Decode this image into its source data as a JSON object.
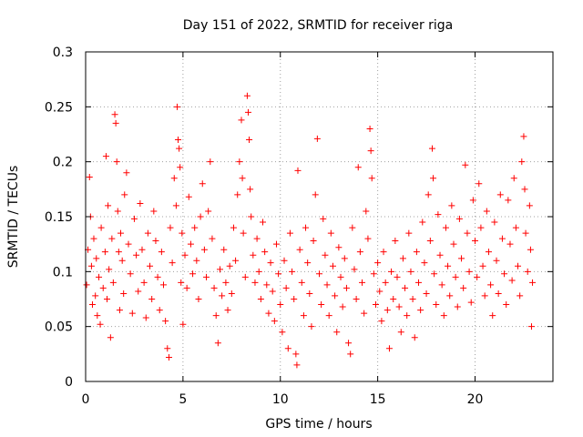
{
  "chart_data": {
    "type": "scatter",
    "title": "Day 151 of 2022, SRMTID for receiver riga",
    "xlabel": "GPS time / hours",
    "ylabel": "SRMTID / TECUs",
    "xlim": [
      0,
      24
    ],
    "ylim": [
      0,
      0.3
    ],
    "x_ticks": [
      "0",
      "5",
      "10",
      "15",
      "20"
    ],
    "y_ticks": [
      "0",
      "0.05",
      "0.1",
      "0.15",
      "0.2",
      "0.25",
      "0.3"
    ],
    "grid": true,
    "marker": "plus",
    "series": [
      {
        "color": "#ff0000",
        "points": [
          [
            0.05,
            0.088
          ],
          [
            0.12,
            0.12
          ],
          [
            0.2,
            0.186
          ],
          [
            0.25,
            0.15
          ],
          [
            0.3,
            0.105
          ],
          [
            0.35,
            0.07
          ],
          [
            0.42,
            0.13
          ],
          [
            0.5,
            0.078
          ],
          [
            0.55,
            0.112
          ],
          [
            0.6,
            0.06
          ],
          [
            0.68,
            0.095
          ],
          [
            0.75,
            0.052
          ],
          [
            0.8,
            0.14
          ],
          [
            0.9,
            0.085
          ],
          [
            1.0,
            0.118
          ],
          [
            1.05,
            0.205
          ],
          [
            1.1,
            0.075
          ],
          [
            1.15,
            0.16
          ],
          [
            1.2,
            0.102
          ],
          [
            1.28,
            0.04
          ],
          [
            1.35,
            0.13
          ],
          [
            1.42,
            0.09
          ],
          [
            1.5,
            0.243
          ],
          [
            1.55,
            0.235
          ],
          [
            1.6,
            0.2
          ],
          [
            1.65,
            0.155
          ],
          [
            1.7,
            0.118
          ],
          [
            1.75,
            0.065
          ],
          [
            1.8,
            0.135
          ],
          [
            1.88,
            0.11
          ],
          [
            1.95,
            0.08
          ],
          [
            2.0,
            0.17
          ],
          [
            2.1,
            0.19
          ],
          [
            2.2,
            0.125
          ],
          [
            2.3,
            0.098
          ],
          [
            2.4,
            0.062
          ],
          [
            2.5,
            0.148
          ],
          [
            2.6,
            0.115
          ],
          [
            2.7,
            0.082
          ],
          [
            2.8,
            0.162
          ],
          [
            2.9,
            0.12
          ],
          [
            3.0,
            0.09
          ],
          [
            3.1,
            0.058
          ],
          [
            3.2,
            0.135
          ],
          [
            3.3,
            0.105
          ],
          [
            3.4,
            0.075
          ],
          [
            3.5,
            0.155
          ],
          [
            3.6,
            0.128
          ],
          [
            3.7,
            0.095
          ],
          [
            3.8,
            0.065
          ],
          [
            3.9,
            0.118
          ],
          [
            4.0,
            0.088
          ],
          [
            4.1,
            0.055
          ],
          [
            4.2,
            0.03
          ],
          [
            4.28,
            0.022
          ],
          [
            4.35,
            0.14
          ],
          [
            4.45,
            0.108
          ],
          [
            4.55,
            0.185
          ],
          [
            4.65,
            0.16
          ],
          [
            4.7,
            0.25
          ],
          [
            4.75,
            0.22
          ],
          [
            4.8,
            0.212
          ],
          [
            4.85,
            0.195
          ],
          [
            4.9,
            0.09
          ],
          [
            4.95,
            0.135
          ],
          [
            5.0,
            0.052
          ],
          [
            5.1,
            0.115
          ],
          [
            5.2,
            0.085
          ],
          [
            5.3,
            0.168
          ],
          [
            5.4,
            0.125
          ],
          [
            5.5,
            0.098
          ],
          [
            5.6,
            0.14
          ],
          [
            5.7,
            0.11
          ],
          [
            5.8,
            0.075
          ],
          [
            5.9,
            0.15
          ],
          [
            6.0,
            0.18
          ],
          [
            6.1,
            0.12
          ],
          [
            6.2,
            0.095
          ],
          [
            6.3,
            0.155
          ],
          [
            6.4,
            0.2
          ],
          [
            6.5,
            0.13
          ],
          [
            6.6,
            0.085
          ],
          [
            6.7,
            0.06
          ],
          [
            6.8,
            0.035
          ],
          [
            6.9,
            0.102
          ],
          [
            7.0,
            0.078
          ],
          [
            7.1,
            0.12
          ],
          [
            7.2,
            0.09
          ],
          [
            7.3,
            0.065
          ],
          [
            7.4,
            0.105
          ],
          [
            7.5,
            0.08
          ],
          [
            7.6,
            0.14
          ],
          [
            7.7,
            0.11
          ],
          [
            7.8,
            0.17
          ],
          [
            7.9,
            0.2
          ],
          [
            8.0,
            0.238
          ],
          [
            8.05,
            0.185
          ],
          [
            8.1,
            0.135
          ],
          [
            8.2,
            0.095
          ],
          [
            8.3,
            0.26
          ],
          [
            8.35,
            0.245
          ],
          [
            8.4,
            0.22
          ],
          [
            8.45,
            0.175
          ],
          [
            8.5,
            0.15
          ],
          [
            8.6,
            0.115
          ],
          [
            8.7,
            0.09
          ],
          [
            8.8,
            0.13
          ],
          [
            8.9,
            0.1
          ],
          [
            9.0,
            0.075
          ],
          [
            9.1,
            0.145
          ],
          [
            9.2,
            0.118
          ],
          [
            9.3,
            0.088
          ],
          [
            9.4,
            0.062
          ],
          [
            9.5,
            0.108
          ],
          [
            9.6,
            0.082
          ],
          [
            9.7,
            0.055
          ],
          [
            9.8,
            0.125
          ],
          [
            9.9,
            0.098
          ],
          [
            10.0,
            0.07
          ],
          [
            10.1,
            0.045
          ],
          [
            10.2,
            0.11
          ],
          [
            10.3,
            0.085
          ],
          [
            10.4,
            0.03
          ],
          [
            10.5,
            0.135
          ],
          [
            10.6,
            0.1
          ],
          [
            10.7,
            0.075
          ],
          [
            10.8,
            0.025
          ],
          [
            10.85,
            0.015
          ],
          [
            10.9,
            0.192
          ],
          [
            11.0,
            0.12
          ],
          [
            11.1,
            0.09
          ],
          [
            11.2,
            0.06
          ],
          [
            11.3,
            0.14
          ],
          [
            11.4,
            0.108
          ],
          [
            11.5,
            0.08
          ],
          [
            11.6,
            0.05
          ],
          [
            11.7,
            0.128
          ],
          [
            11.8,
            0.17
          ],
          [
            11.9,
            0.221
          ],
          [
            12.0,
            0.098
          ],
          [
            12.1,
            0.07
          ],
          [
            12.2,
            0.148
          ],
          [
            12.3,
            0.115
          ],
          [
            12.4,
            0.088
          ],
          [
            12.5,
            0.06
          ],
          [
            12.6,
            0.135
          ],
          [
            12.7,
            0.105
          ],
          [
            12.8,
            0.078
          ],
          [
            12.9,
            0.045
          ],
          [
            13.0,
            0.122
          ],
          [
            13.1,
            0.095
          ],
          [
            13.2,
            0.068
          ],
          [
            13.3,
            0.112
          ],
          [
            13.4,
            0.085
          ],
          [
            13.5,
            0.035
          ],
          [
            13.6,
            0.025
          ],
          [
            13.7,
            0.14
          ],
          [
            13.8,
            0.102
          ],
          [
            13.9,
            0.075
          ],
          [
            14.0,
            0.195
          ],
          [
            14.1,
            0.118
          ],
          [
            14.2,
            0.09
          ],
          [
            14.3,
            0.062
          ],
          [
            14.4,
            0.155
          ],
          [
            14.5,
            0.13
          ],
          [
            14.6,
            0.23
          ],
          [
            14.65,
            0.21
          ],
          [
            14.7,
            0.185
          ],
          [
            14.8,
            0.098
          ],
          [
            14.9,
            0.07
          ],
          [
            15.0,
            0.108
          ],
          [
            15.1,
            0.082
          ],
          [
            15.2,
            0.055
          ],
          [
            15.3,
            0.118
          ],
          [
            15.4,
            0.09
          ],
          [
            15.5,
            0.065
          ],
          [
            15.6,
            0.03
          ],
          [
            15.7,
            0.1
          ],
          [
            15.8,
            0.075
          ],
          [
            15.9,
            0.128
          ],
          [
            16.0,
            0.095
          ],
          [
            16.1,
            0.068
          ],
          [
            16.2,
            0.045
          ],
          [
            16.3,
            0.112
          ],
          [
            16.4,
            0.085
          ],
          [
            16.5,
            0.06
          ],
          [
            16.6,
            0.135
          ],
          [
            16.7,
            0.1
          ],
          [
            16.8,
            0.075
          ],
          [
            16.9,
            0.04
          ],
          [
            17.0,
            0.118
          ],
          [
            17.1,
            0.09
          ],
          [
            17.2,
            0.065
          ],
          [
            17.3,
            0.145
          ],
          [
            17.4,
            0.108
          ],
          [
            17.5,
            0.08
          ],
          [
            17.6,
            0.17
          ],
          [
            17.7,
            0.128
          ],
          [
            17.8,
            0.212
          ],
          [
            17.85,
            0.185
          ],
          [
            17.9,
            0.098
          ],
          [
            18.0,
            0.07
          ],
          [
            18.1,
            0.152
          ],
          [
            18.2,
            0.115
          ],
          [
            18.3,
            0.088
          ],
          [
            18.4,
            0.06
          ],
          [
            18.5,
            0.14
          ],
          [
            18.6,
            0.105
          ],
          [
            18.7,
            0.078
          ],
          [
            18.8,
            0.16
          ],
          [
            18.9,
            0.125
          ],
          [
            19.0,
            0.095
          ],
          [
            19.1,
            0.068
          ],
          [
            19.2,
            0.148
          ],
          [
            19.3,
            0.112
          ],
          [
            19.4,
            0.085
          ],
          [
            19.5,
            0.197
          ],
          [
            19.6,
            0.135
          ],
          [
            19.7,
            0.1
          ],
          [
            19.8,
            0.072
          ],
          [
            19.9,
            0.165
          ],
          [
            20.0,
            0.128
          ],
          [
            20.1,
            0.095
          ],
          [
            20.2,
            0.18
          ],
          [
            20.3,
            0.14
          ],
          [
            20.4,
            0.105
          ],
          [
            20.5,
            0.078
          ],
          [
            20.6,
            0.155
          ],
          [
            20.7,
            0.118
          ],
          [
            20.8,
            0.088
          ],
          [
            20.9,
            0.06
          ],
          [
            21.0,
            0.145
          ],
          [
            21.1,
            0.11
          ],
          [
            21.2,
            0.08
          ],
          [
            21.3,
            0.17
          ],
          [
            21.4,
            0.13
          ],
          [
            21.5,
            0.098
          ],
          [
            21.6,
            0.07
          ],
          [
            21.7,
            0.165
          ],
          [
            21.8,
            0.125
          ],
          [
            21.9,
            0.092
          ],
          [
            22.0,
            0.185
          ],
          [
            22.1,
            0.14
          ],
          [
            22.2,
            0.105
          ],
          [
            22.3,
            0.078
          ],
          [
            22.4,
            0.2
          ],
          [
            22.5,
            0.223
          ],
          [
            22.55,
            0.175
          ],
          [
            22.6,
            0.135
          ],
          [
            22.7,
            0.1
          ],
          [
            22.8,
            0.16
          ],
          [
            22.85,
            0.12
          ],
          [
            22.9,
            0.05
          ],
          [
            22.95,
            0.09
          ]
        ]
      }
    ]
  }
}
